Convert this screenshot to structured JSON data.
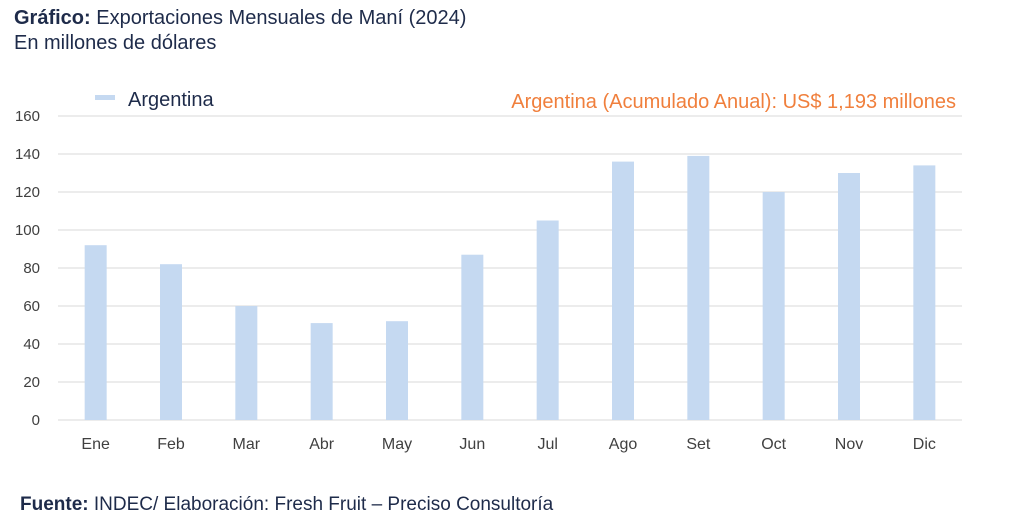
{
  "header": {
    "title_prefix": "Gráfico:",
    "title_text": " Exportaciones Mensuales de Maní (2024)",
    "subtitle": "En millones de dólares"
  },
  "footer": {
    "source_label": "Fuente:",
    "source_text": " INDEC/ Elaboración: Fresh Fruit – Preciso Consultoría"
  },
  "colors": {
    "bar": "#c5d9f1",
    "grid": "#d9d9d9",
    "axis_text": "#404040",
    "annotation": "#f07f3c",
    "legend_text": "#1e2b4a"
  },
  "chart_data": {
    "type": "bar",
    "categories": [
      "Ene",
      "Feb",
      "Mar",
      "Abr",
      "May",
      "Jun",
      "Jul",
      "Ago",
      "Set",
      "Oct",
      "Nov",
      "Dic"
    ],
    "series": [
      {
        "name": "Argentina",
        "values": [
          92,
          82,
          60,
          51,
          52,
          87,
          105,
          136,
          139,
          120,
          130,
          134
        ]
      }
    ],
    "ylim": [
      0,
      160
    ],
    "yticks": [
      0,
      20,
      40,
      60,
      80,
      100,
      120,
      140,
      160
    ],
    "grid": true,
    "legend_position": "top-left",
    "annotation": "Argentina (Acumulado Anual): US$ 1,193 millones",
    "xlabel": "",
    "ylabel": ""
  }
}
